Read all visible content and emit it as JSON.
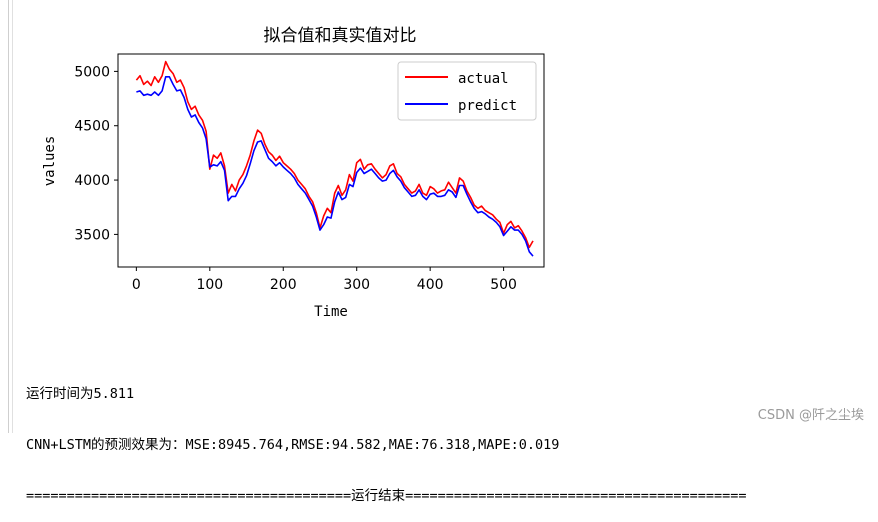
{
  "chart_data": {
    "type": "line",
    "title": "拟合值和真实值对比",
    "xlabel": "Time",
    "ylabel": "values",
    "xlim": [
      -25,
      555
    ],
    "ylim": [
      3200,
      5160
    ],
    "xticks": [
      0,
      100,
      200,
      300,
      400,
      500
    ],
    "yticks": [
      3500,
      4000,
      4500,
      5000
    ],
    "legend_position": "top-right",
    "series": [
      {
        "name": "actual",
        "color": "#ff0000",
        "x": [
          0,
          5,
          10,
          15,
          20,
          25,
          30,
          35,
          40,
          45,
          50,
          55,
          60,
          65,
          70,
          75,
          80,
          85,
          90,
          95,
          100,
          105,
          110,
          115,
          120,
          125,
          130,
          135,
          140,
          145,
          150,
          155,
          160,
          165,
          170,
          175,
          180,
          185,
          190,
          195,
          200,
          205,
          210,
          215,
          220,
          225,
          230,
          235,
          240,
          245,
          250,
          255,
          260,
          265,
          270,
          275,
          280,
          285,
          290,
          295,
          300,
          305,
          310,
          315,
          320,
          325,
          330,
          335,
          340,
          345,
          350,
          355,
          360,
          365,
          370,
          375,
          380,
          385,
          390,
          395,
          400,
          405,
          410,
          415,
          420,
          425,
          430,
          435,
          440,
          445,
          450,
          455,
          460,
          465,
          470,
          475,
          480,
          485,
          490,
          495,
          500,
          505,
          510,
          515,
          520,
          525,
          530,
          535,
          540
        ],
        "values": [
          4920,
          4960,
          4880,
          4910,
          4870,
          4950,
          4900,
          4960,
          5090,
          5020,
          4980,
          4900,
          4920,
          4850,
          4720,
          4650,
          4680,
          4600,
          4550,
          4450,
          4100,
          4230,
          4200,
          4250,
          4130,
          3880,
          3960,
          3900,
          4000,
          4050,
          4130,
          4230,
          4360,
          4460,
          4430,
          4330,
          4260,
          4230,
          4180,
          4220,
          4160,
          4130,
          4100,
          4060,
          4000,
          3960,
          3920,
          3850,
          3800,
          3700,
          3560,
          3670,
          3740,
          3700,
          3880,
          3950,
          3860,
          3910,
          4050,
          3990,
          4160,
          4190,
          4100,
          4140,
          4150,
          4100,
          4060,
          4020,
          4050,
          4130,
          4150,
          4060,
          4030,
          3960,
          3920,
          3880,
          3900,
          3960,
          3880,
          3860,
          3940,
          3920,
          3880,
          3900,
          3910,
          3980,
          3930,
          3880,
          4020,
          3990,
          3900,
          3840,
          3770,
          3740,
          3760,
          3720,
          3700,
          3680,
          3640,
          3610,
          3510,
          3590,
          3620,
          3560,
          3580,
          3530,
          3470,
          3380,
          3440
        ]
      },
      {
        "name": "predict",
        "color": "#0000ff",
        "x": [
          0,
          5,
          10,
          15,
          20,
          25,
          30,
          35,
          40,
          45,
          50,
          55,
          60,
          65,
          70,
          75,
          80,
          85,
          90,
          95,
          100,
          105,
          110,
          115,
          120,
          125,
          130,
          135,
          140,
          145,
          150,
          155,
          160,
          165,
          170,
          175,
          180,
          185,
          190,
          195,
          200,
          205,
          210,
          215,
          220,
          225,
          230,
          235,
          240,
          245,
          250,
          255,
          260,
          265,
          270,
          275,
          280,
          285,
          290,
          295,
          300,
          305,
          310,
          315,
          320,
          325,
          330,
          335,
          340,
          345,
          350,
          355,
          360,
          365,
          370,
          375,
          380,
          385,
          390,
          395,
          400,
          405,
          410,
          415,
          420,
          425,
          430,
          435,
          440,
          445,
          450,
          455,
          460,
          465,
          470,
          475,
          480,
          485,
          490,
          495,
          500,
          505,
          510,
          515,
          520,
          525,
          530,
          535,
          540
        ],
        "values": [
          4810,
          4820,
          4780,
          4790,
          4780,
          4810,
          4780,
          4820,
          4950,
          4950,
          4880,
          4820,
          4830,
          4760,
          4650,
          4580,
          4600,
          4530,
          4480,
          4380,
          4120,
          4140,
          4130,
          4170,
          4090,
          3810,
          3850,
          3850,
          3920,
          3970,
          4040,
          4150,
          4270,
          4350,
          4360,
          4280,
          4200,
          4170,
          4130,
          4160,
          4120,
          4090,
          4060,
          4020,
          3960,
          3920,
          3880,
          3820,
          3760,
          3660,
          3540,
          3590,
          3660,
          3650,
          3800,
          3890,
          3820,
          3840,
          3960,
          3940,
          4070,
          4110,
          4060,
          4080,
          4100,
          4060,
          4020,
          3990,
          4000,
          4060,
          4090,
          4030,
          3990,
          3930,
          3890,
          3850,
          3860,
          3910,
          3850,
          3820,
          3870,
          3880,
          3850,
          3850,
          3860,
          3910,
          3890,
          3840,
          3950,
          3950,
          3870,
          3800,
          3740,
          3700,
          3710,
          3690,
          3660,
          3640,
          3610,
          3570,
          3490,
          3530,
          3570,
          3540,
          3540,
          3500,
          3440,
          3340,
          3300
        ]
      }
    ]
  },
  "console": {
    "line1": "运行时间为5.811",
    "line2": "CNN+LSTM的预测效果为：MSE:8945.764,RMSE:94.582,MAE:76.318,MAPE:0.019",
    "line3": "========================================运行结束=========================================="
  },
  "watermark": "CSDN @阡之尘埃"
}
